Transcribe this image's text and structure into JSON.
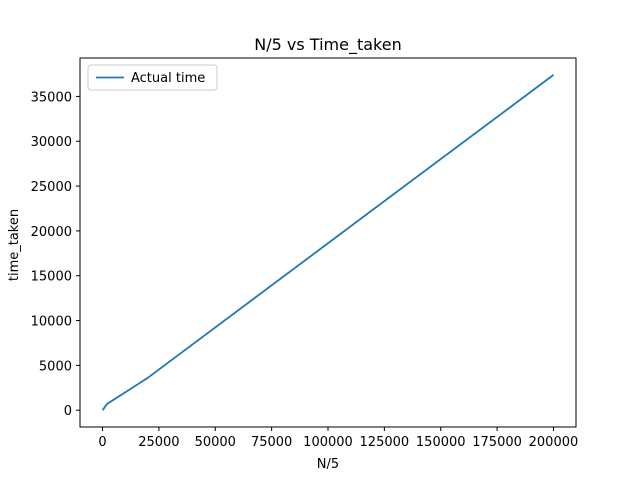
{
  "chart_data": {
    "type": "line",
    "title": "N/5 vs Time_taken",
    "xlabel": "N/5",
    "ylabel": "time_taken",
    "xlim": [
      -10000,
      210000
    ],
    "ylim": [
      -1873,
      39285
    ],
    "xticks": [
      0,
      25000,
      50000,
      75000,
      100000,
      125000,
      150000,
      175000,
      200000
    ],
    "yticks": [
      0,
      5000,
      10000,
      15000,
      20000,
      25000,
      30000,
      35000
    ],
    "grid": false,
    "legend": {
      "position": "top-left",
      "entries": [
        "Actual time"
      ]
    },
    "series": [
      {
        "name": "Actual time",
        "color": "#1f77b4",
        "x": [
          0,
          2000,
          20000,
          200000
        ],
        "y": [
          0,
          700,
          3600,
          37400
        ]
      }
    ]
  }
}
